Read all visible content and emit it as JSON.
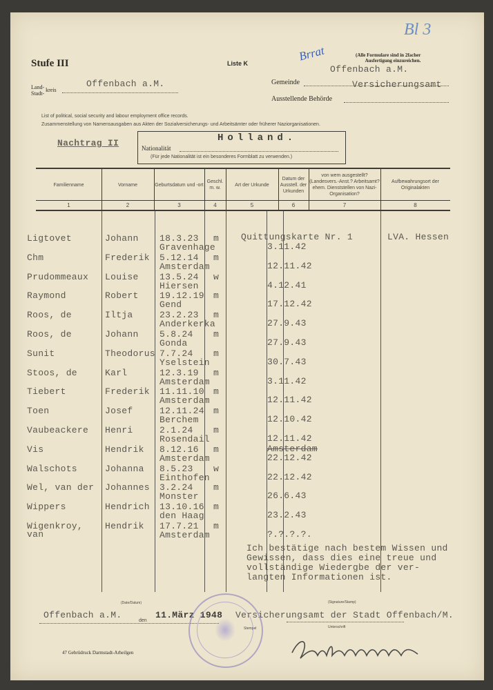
{
  "form": {
    "stufe": "Stufe III",
    "liste": "Liste K",
    "note_line1": "(Alle Formulare sind in 2facher",
    "note_line2": "Ausfertigung einzureichen.",
    "handwritten_top": "Bl 3",
    "handwritten_blue": "Brrat",
    "gemeinde_value_top": "Offenbach a.M.",
    "landkreis_label_1": "Land-",
    "landkreis_label_2": "kreis",
    "landkreis_label_3": "Stadt-",
    "landkreis_value": "Offenbach a.M.",
    "gemeinde_label": "Gemeinde",
    "gemeinde_value": "Versicherungsamt",
    "behoerde_label": "Ausstellende Behörde",
    "english_line": "List of political, social security and labour employment office records.",
    "german_line": "Zusammenstellung von Namensausgaben aus Akten der Sozialversicherungs- und Arbeitsämter oder früherer Naziorganisationen.",
    "nachtrag": "Nachtrag II",
    "nationalitaet_label": "Nationalität",
    "nationalitaet_value": "Holland.",
    "nationalitaet_note": "(Für jede Nationalität ist ein besonderes Formblatt zu verwenden.)"
  },
  "table": {
    "headers": [
      {
        "label": "Familienname",
        "num": "1"
      },
      {
        "label": "Vorname",
        "num": "2"
      },
      {
        "label": "Geburtsdatum und -ort",
        "num": "3"
      },
      {
        "label": "Geschl. m. w.",
        "num": "4"
      },
      {
        "label": "Art der Urkunde",
        "num": "5"
      },
      {
        "label": "Datum der Ausstell. der Urkunden",
        "num": "6"
      },
      {
        "label": "von wem ausgestellt? (Landesvers.-Anst.? Arbeitsamt? ehem. Dienststellen von Nazi-Organisation?",
        "num": "7"
      },
      {
        "label": "Aufbewahrungsort der Originalakten",
        "num": "8"
      }
    ],
    "rows": [
      {
        "familienname": "Ligtovet",
        "vorname": "Johann",
        "geburtsdatum": "18.3.23",
        "geschlecht": "m",
        "geburtsort": "Gravenhage",
        "urkunde": "Quittungskarte Nr. 1",
        "datum": "3.11.42",
        "aufbewahrung": "LVA. Hessen"
      },
      {
        "familienname": "Chm",
        "vorname": "Frederik",
        "geburtsdatum": "5.12.14",
        "geschlecht": "m",
        "geburtsort": "Amsterdam",
        "datum": "12.11.42"
      },
      {
        "familienname": "Prudommeaux",
        "vorname": "Louise",
        "geburtsdatum": "13.5.24",
        "geschlecht": "w",
        "geburtsort": "Hiersen",
        "datum": "4.12.41"
      },
      {
        "familienname": "Raymond",
        "vorname": "Robert",
        "geburtsdatum": "19.12.19",
        "geschlecht": "m",
        "geburtsort": "Gend",
        "datum": "17.12.42"
      },
      {
        "familienname": "Roos, de",
        "vorname": "Iltja",
        "geburtsdatum": "23.2.23",
        "geschlecht": "m",
        "geburtsort": "Anderkerka",
        "datum": "27.9.43"
      },
      {
        "familienname": "Roos, de",
        "vorname": "Johann",
        "geburtsdatum": "5.8.24",
        "geschlecht": "m",
        "geburtsort": "Gonda",
        "datum": "27.9.43"
      },
      {
        "familienname": "Sunit",
        "vorname": "Theodorus",
        "geburtsdatum": "7.7.24",
        "geschlecht": "m",
        "geburtsort": "Yselstein",
        "datum": "30.7.43"
      },
      {
        "familienname": "Stoos, de",
        "vorname": "Karl",
        "geburtsdatum": "12.3.19",
        "geschlecht": "m",
        "geburtsort": "Amsterdam",
        "datum": "3.11.42"
      },
      {
        "familienname": "Tiebert",
        "vorname": "Frederik",
        "geburtsdatum": "11.11.10",
        "geschlecht": "m",
        "geburtsort": "Amsterdam",
        "datum": "12.11.42"
      },
      {
        "familienname": "Toen",
        "vorname": "Josef",
        "geburtsdatum": "12.11.24",
        "geschlecht": "m",
        "geburtsort": "Berchem",
        "datum": "12.10.42"
      },
      {
        "familienname": "Vaubeackere",
        "vorname": "Henri",
        "geburtsdatum": "2.1.24",
        "geschlecht": "m",
        "geburtsort": "Rosendail",
        "datum": "12.11.42"
      },
      {
        "familienname": "Vis",
        "vorname": "Hendrik",
        "geburtsdatum": "8.12.16",
        "geschlecht": "m",
        "geburtsort": "Amsterdam",
        "datum": "22.12.42"
      },
      {
        "familienname": "Walschots",
        "vorname": "Johanna",
        "geburtsdatum": "8.5.23",
        "geschlecht": "w",
        "geburtsort": "Einthofen",
        "datum": "22.12.42"
      },
      {
        "familienname": "Wel, van der",
        "vorname": "Johannes",
        "geburtsdatum": "3.2.24",
        "geschlecht": "m",
        "geburtsort": "Monster",
        "datum": "26.6.43"
      },
      {
        "familienname": "Wippers",
        "vorname": "Hendrich",
        "geburtsdatum": "13.10.16",
        "geschlecht": "m",
        "geburtsort": "den Haag",
        "datum": "23.2.43"
      },
      {
        "familienname": "Wigenkroy, van",
        "vorname": "Hendrik",
        "geburtsdatum": "17.7.21",
        "geschlecht": "m",
        "geburtsort": "Amsterdam",
        "datum": "?.?.?.?."
      }
    ],
    "struck_text": "Amsterdam"
  },
  "confirmation": [
    "Ich bestätige nach bestem Wissen und",
    "Gewissen, dass dies eine treue und",
    "vollständige Wiedergbe der ver-",
    "langten Informationen ist."
  ],
  "footer": {
    "date_label": "(Date/Datum)",
    "place_value": "Offenbach a.M.",
    "den_label": "den",
    "date_value": "11.März 1948",
    "signature_label": "(Signature/Stamp)",
    "authority_value": "Versicherungsamt der Stadt Offenbach/M.",
    "stempel_label": "Stempel",
    "unterschrift_label": "Unterschrift",
    "printer": "47 Gebrüdruck Darmstadt-Arheilgen"
  },
  "colors": {
    "paper": "#ece4cd",
    "ink_blue": "#3b5fb0",
    "ink_green": "#3a9a7a",
    "stamp_violet": "#8a7fb0"
  }
}
